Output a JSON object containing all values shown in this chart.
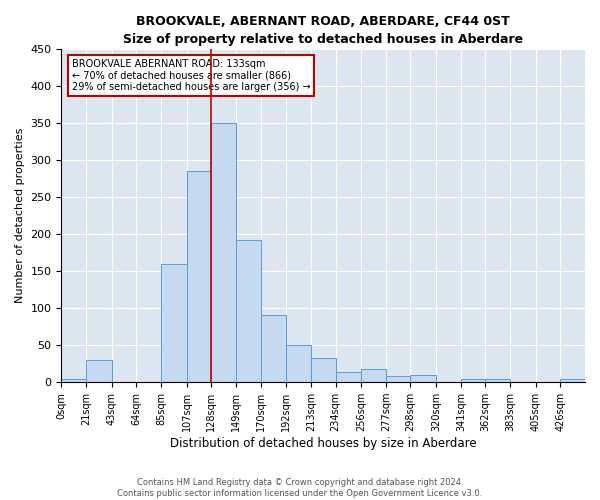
{
  "title": "BROOKVALE, ABERNANT ROAD, ABERDARE, CF44 0ST",
  "subtitle": "Size of property relative to detached houses in Aberdare",
  "xlabel": "Distribution of detached houses by size in Aberdare",
  "ylabel": "Number of detached properties",
  "footnote1": "Contains HM Land Registry data © Crown copyright and database right 2024.",
  "footnote2": "Contains public sector information licensed under the Open Government Licence v3.0.",
  "bin_labels": [
    "0sqm",
    "21sqm",
    "43sqm",
    "64sqm",
    "85sqm",
    "107sqm",
    "128sqm",
    "149sqm",
    "170sqm",
    "192sqm",
    "213sqm",
    "234sqm",
    "256sqm",
    "277sqm",
    "298sqm",
    "320sqm",
    "341sqm",
    "362sqm",
    "383sqm",
    "405sqm",
    "426sqm"
  ],
  "bar_heights": [
    4,
    30,
    0,
    0,
    160,
    285,
    350,
    192,
    91,
    50,
    32,
    14,
    18,
    8,
    10,
    0,
    5,
    5,
    0,
    0,
    4
  ],
  "bar_color": "#c5d9f1",
  "bar_edge_color": "#5b9bd5",
  "background_color": "#dce6f1",
  "grid_color": "#ffffff",
  "vline_color": "#c00000",
  "annotation_title": "BROOKVALE ABERNANT ROAD: 133sqm",
  "annotation_line1": "← 70% of detached houses are smaller (866)",
  "annotation_line2": "29% of semi-detached houses are larger (356) →",
  "annotation_box_color": "#c00000",
  "ylim": [
    0,
    450
  ],
  "yticks": [
    0,
    50,
    100,
    150,
    200,
    250,
    300,
    350,
    400,
    450
  ]
}
